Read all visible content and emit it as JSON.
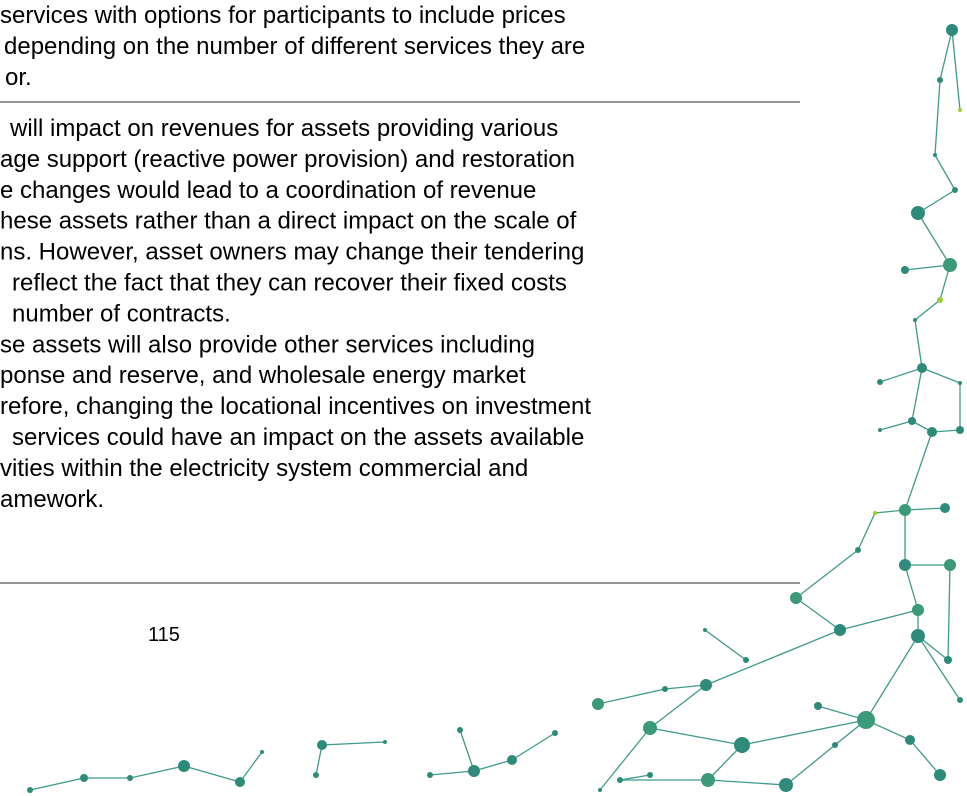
{
  "paragraphs": [
    [
      "services with options for participants to include prices",
      "depending on the number of different services they are",
      "or."
    ],
    [
      "will impact on revenues for assets providing various",
      "age support (reactive power provision) and restoration",
      "e changes would lead to a coordination of revenue",
      "hese assets rather than a direct impact on the scale of",
      "ns. However, asset owners may change their tendering",
      "reflect the fact that they can recover their fixed costs",
      "number of contracts.",
      "se assets will also provide other services including",
      "ponse and reserve, and wholesale energy market",
      "refore, changing the locational incentives on investment",
      "services could have an impact on the assets available",
      "vities within the electricity system commercial and",
      "amework."
    ]
  ],
  "footer": {
    "page_number": "115"
  }
}
